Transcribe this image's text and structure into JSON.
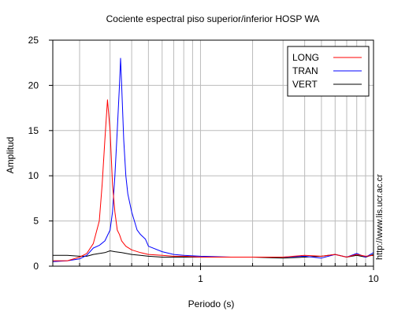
{
  "chart_data": {
    "type": "line",
    "title": "Cociente espectral piso superior/inferior  HOSP WA",
    "xlabel": "Periodo (s)",
    "ylabel": "Amplitud",
    "x_scale": "log",
    "xlim": [
      0.14,
      10
    ],
    "ylim": [
      0,
      25
    ],
    "x_ticks": [
      1,
      10
    ],
    "x_tick_labels": [
      "1",
      "10"
    ],
    "y_ticks": [
      0,
      5,
      10,
      15,
      20,
      25
    ],
    "y_tick_labels": [
      "0",
      "5",
      "10",
      "15",
      "20",
      "25"
    ],
    "grid": true,
    "legend_position": "top-right",
    "series": [
      {
        "name": "LONG",
        "color": "#ff0000",
        "x": [
          0.14,
          0.17,
          0.2,
          0.22,
          0.24,
          0.26,
          0.27,
          0.28,
          0.29,
          0.3,
          0.31,
          0.32,
          0.33,
          0.34,
          0.35,
          0.37,
          0.4,
          0.45,
          0.5,
          0.6,
          0.7,
          0.8,
          1.0,
          1.5,
          2.0,
          3.0,
          4.0,
          5.0,
          6.0,
          7.0,
          8.0,
          9.0,
          10.0
        ],
        "y": [
          0.6,
          0.6,
          1.0,
          1.4,
          2.5,
          5.0,
          9.0,
          14.0,
          18.4,
          15.0,
          9.0,
          6.0,
          4.0,
          3.5,
          2.8,
          2.2,
          1.8,
          1.5,
          1.3,
          1.2,
          1.1,
          1.1,
          1.0,
          1.0,
          1.0,
          1.0,
          1.2,
          1.1,
          1.3,
          1.0,
          1.3,
          1.1,
          1.2
        ]
      },
      {
        "name": "TRAN",
        "color": "#0000ff",
        "x": [
          0.14,
          0.17,
          0.2,
          0.22,
          0.24,
          0.26,
          0.28,
          0.3,
          0.31,
          0.32,
          0.33,
          0.34,
          0.345,
          0.35,
          0.36,
          0.37,
          0.38,
          0.4,
          0.43,
          0.45,
          0.48,
          0.5,
          0.6,
          0.7,
          0.8,
          1.0,
          1.5,
          2.0,
          3.0,
          4.0,
          5.0,
          6.0,
          7.0,
          8.0,
          9.0,
          10.0
        ],
        "y": [
          0.5,
          0.6,
          0.8,
          1.2,
          2.0,
          2.3,
          2.8,
          4.0,
          6.0,
          10.0,
          15.0,
          20.0,
          23.0,
          20.0,
          14.0,
          10.0,
          8.0,
          6.0,
          4.0,
          3.5,
          3.0,
          2.2,
          1.6,
          1.3,
          1.2,
          1.1,
          1.0,
          1.0,
          1.0,
          1.1,
          0.9,
          1.3,
          1.0,
          1.4,
          1.0,
          1.5
        ]
      },
      {
        "name": "VERT",
        "color": "#000000",
        "x": [
          0.14,
          0.17,
          0.2,
          0.22,
          0.24,
          0.26,
          0.28,
          0.3,
          0.32,
          0.35,
          0.4,
          0.45,
          0.5,
          0.6,
          0.7,
          0.8,
          1.0,
          1.5,
          2.0,
          3.0,
          4.0,
          5.0,
          6.0,
          7.0,
          8.0,
          9.0,
          10.0
        ],
        "y": [
          1.2,
          1.2,
          1.1,
          1.1,
          1.3,
          1.4,
          1.5,
          1.7,
          1.6,
          1.5,
          1.3,
          1.2,
          1.1,
          1.0,
          1.0,
          1.0,
          1.0,
          1.0,
          1.0,
          0.9,
          1.0,
          1.1,
          1.3,
          1.0,
          1.2,
          1.0,
          1.3
        ]
      }
    ]
  },
  "watermark": "http://www.lis.ucr.ac.cr"
}
